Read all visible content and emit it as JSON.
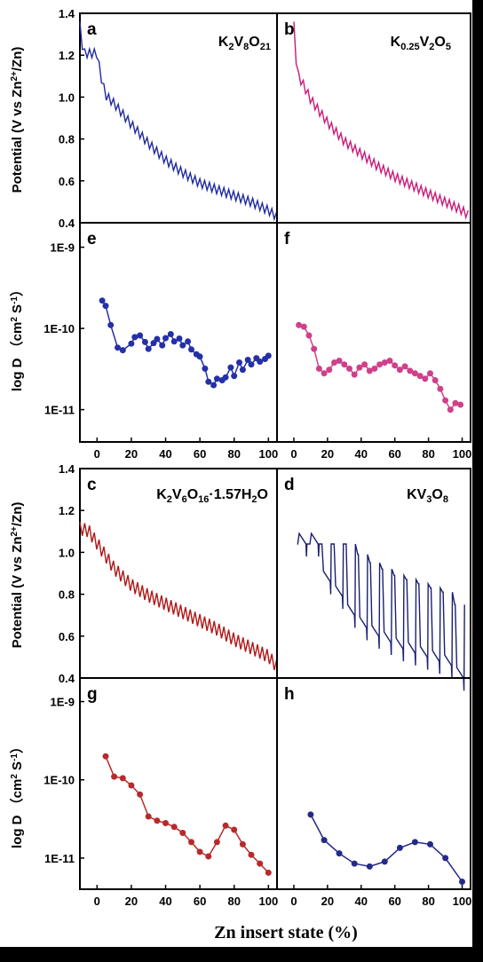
{
  "colors": {
    "a": "#1f2a9e",
    "b": "#c81a78",
    "c": "#b01818",
    "d": "#1a2070",
    "e": "#2530a8",
    "f": "#d0408a",
    "g": "#b82a2a",
    "h": "#242a88"
  },
  "xlabel": "Zn insert state (%)",
  "ylabel_potential": "Potential (V vs Zn",
  "ylabel_potential_sup": "2+",
  "ylabel_potential_end": "/Zn)",
  "ylabel_logd": "log D （cm",
  "ylabel_logd_sup1": "2",
  "ylabel_logd_mid": " S",
  "ylabel_logd_sup2": "-1",
  "ylabel_logd_end": "）",
  "chart_data": [
    {
      "id": "a",
      "type": "line",
      "panel_label": "a",
      "title": "K2V8O21",
      "xlim": [
        -10,
        105
      ],
      "ylim": [
        0.4,
        1.4
      ],
      "yticks": [
        "0.4",
        "0.6",
        "0.8",
        "1.0",
        "1.2",
        "1.4"
      ],
      "series": [
        {
          "x": [
            -10,
            -8,
            -5,
            0,
            2,
            5,
            10,
            20,
            30,
            40,
            50,
            60,
            70,
            80,
            90,
            100,
            105
          ],
          "y": [
            1.33,
            1.2,
            1.2,
            1.2,
            1.1,
            1.0,
            0.96,
            0.86,
            0.77,
            0.69,
            0.63,
            0.58,
            0.55,
            0.52,
            0.49,
            0.45,
            0.42
          ]
        }
      ]
    },
    {
      "id": "b",
      "type": "line",
      "panel_label": "b",
      "title": "K0.25V2O5",
      "xlim": [
        -10,
        105
      ],
      "ylim": [
        0.4,
        1.4
      ],
      "series": [
        {
          "x": [
            0,
            2,
            5,
            10,
            20,
            30,
            40,
            50,
            60,
            70,
            80,
            90,
            100,
            105
          ],
          "y": [
            1.33,
            1.1,
            1.06,
            0.98,
            0.87,
            0.78,
            0.72,
            0.66,
            0.61,
            0.57,
            0.53,
            0.49,
            0.45,
            0.42
          ]
        }
      ]
    },
    {
      "id": "e",
      "type": "scatter",
      "panel_label": "e",
      "xlim": [
        -10,
        105
      ],
      "ylog": true,
      "ylim": [
        4e-12,
        2e-09
      ],
      "yticks": [
        "1E-11",
        "1E-10",
        "1E-9"
      ],
      "xticks": [
        "0",
        "20",
        "40",
        "60",
        "80",
        "100"
      ],
      "series": [
        {
          "x": [
            3,
            5,
            8,
            12,
            15,
            20,
            22,
            25,
            28,
            30,
            33,
            35,
            38,
            40,
            43,
            45,
            48,
            50,
            53,
            55,
            58,
            60,
            63,
            65,
            68,
            70,
            73,
            75,
            78,
            80,
            83,
            85,
            88,
            90,
            93,
            95,
            98,
            100
          ],
          "y": [
            2.2e-10,
            1.9e-10,
            1.1e-10,
            5.8e-11,
            5.4e-11,
            6.5e-11,
            7.8e-11,
            8.2e-11,
            6.8e-11,
            5.6e-11,
            6.6e-11,
            7.4e-11,
            6.2e-11,
            7.6e-11,
            8.5e-11,
            6.9e-11,
            7.5e-11,
            6.2e-11,
            6.9e-11,
            5.5e-11,
            4.8e-11,
            4.5e-11,
            3.2e-11,
            2.2e-11,
            2e-11,
            2.4e-11,
            2.3e-11,
            2.5e-11,
            3.3e-11,
            2.6e-11,
            3.8e-11,
            3.1e-11,
            4.1e-11,
            3.6e-11,
            4.3e-11,
            3.9e-11,
            4.2e-11,
            4.6e-11
          ]
        }
      ]
    },
    {
      "id": "f",
      "type": "scatter",
      "panel_label": "f",
      "xlim": [
        -10,
        105
      ],
      "ylog": true,
      "ylim": [
        4e-12,
        2e-09
      ],
      "xticks": [
        "0",
        "20",
        "40",
        "60",
        "80",
        "100"
      ],
      "series": [
        {
          "x": [
            3,
            6,
            9,
            12,
            15,
            18,
            21,
            24,
            27,
            30,
            33,
            36,
            39,
            42,
            45,
            48,
            51,
            54,
            57,
            60,
            63,
            66,
            69,
            72,
            75,
            78,
            81,
            84,
            87,
            90,
            93,
            96,
            99
          ],
          "y": [
            1.1e-10,
            1.05e-10,
            8.2e-11,
            5.6e-11,
            3.2e-11,
            2.8e-11,
            3.1e-11,
            3.8e-11,
            4e-11,
            3.6e-11,
            3.2e-11,
            2.7e-11,
            3.3e-11,
            3.6e-11,
            3e-11,
            3.2e-11,
            3.6e-11,
            3.8e-11,
            4e-11,
            3.5e-11,
            3.1e-11,
            3.4e-11,
            3e-11,
            2.8e-11,
            2.6e-11,
            2.4e-11,
            2.8e-11,
            2.3e-11,
            1.8e-11,
            1.3e-11,
            1e-11,
            1.2e-11,
            1.15e-11
          ]
        }
      ]
    },
    {
      "id": "c",
      "type": "line",
      "panel_label": "c",
      "title": "K2V6O16·1.57H2O",
      "xlim": [
        -10,
        105
      ],
      "ylim": [
        0.4,
        1.4
      ],
      "yticks": [
        "0.4",
        "0.6",
        "0.8",
        "1.0",
        "1.2",
        "1.4"
      ],
      "series": [
        {
          "x": [
            -10,
            -5,
            0,
            5,
            10,
            20,
            30,
            40,
            50,
            60,
            70,
            80,
            90,
            100,
            105
          ],
          "y": [
            1.1,
            1.09,
            1.03,
            0.97,
            0.91,
            0.83,
            0.78,
            0.74,
            0.7,
            0.66,
            0.62,
            0.57,
            0.53,
            0.49,
            0.44
          ]
        }
      ]
    },
    {
      "id": "d",
      "type": "line",
      "panel_label": "d",
      "title": "KV3O8",
      "xlim": [
        -10,
        105
      ],
      "ylim": [
        0.4,
        1.4
      ],
      "series": [
        {
          "x": [
            0,
            3,
            5,
            10,
            20,
            30,
            40,
            50,
            60,
            70,
            80,
            90,
            100,
            105
          ],
          "y": [
            1.04,
            1.04,
            0.86,
            0.79,
            0.7,
            0.64,
            0.6,
            0.57,
            0.54,
            0.52,
            0.5,
            0.48,
            0.46,
            0.4
          ]
        }
      ]
    },
    {
      "id": "g",
      "type": "scatter",
      "panel_label": "g",
      "xlim": [
        -10,
        105
      ],
      "ylog": true,
      "ylim": [
        4e-12,
        2e-09
      ],
      "yticks": [
        "1E-11",
        "1E-10",
        "1E-9"
      ],
      "xticks": [
        "0",
        "20",
        "40",
        "60",
        "80",
        "100"
      ],
      "series": [
        {
          "x": [
            5,
            10,
            15,
            20,
            25,
            30,
            35,
            40,
            45,
            50,
            55,
            60,
            65,
            70,
            75,
            80,
            85,
            90,
            95,
            100
          ],
          "y": [
            2e-10,
            1.1e-10,
            1.05e-10,
            8.5e-11,
            6.5e-11,
            3.4e-11,
            3e-11,
            2.8e-11,
            2.5e-11,
            2.1e-11,
            1.6e-11,
            1.2e-11,
            1.05e-11,
            1.6e-11,
            2.6e-11,
            2.3e-11,
            1.5e-11,
            1.1e-11,
            8.5e-12,
            6.5e-12
          ]
        }
      ]
    },
    {
      "id": "h",
      "type": "scatter",
      "panel_label": "h",
      "xlim": [
        -10,
        105
      ],
      "ylog": true,
      "ylim": [
        4e-12,
        2e-09
      ],
      "xticks": [
        "0",
        "20",
        "40",
        "60",
        "80",
        "100"
      ],
      "series": [
        {
          "x": [
            10,
            18,
            27,
            36,
            45,
            54,
            63,
            72,
            81,
            90,
            100
          ],
          "y": [
            3.6e-11,
            1.7e-11,
            1.15e-11,
            8.5e-12,
            7.8e-12,
            9e-12,
            1.35e-11,
            1.6e-11,
            1.5e-11,
            1e-11,
            5e-12
          ]
        }
      ]
    }
  ]
}
